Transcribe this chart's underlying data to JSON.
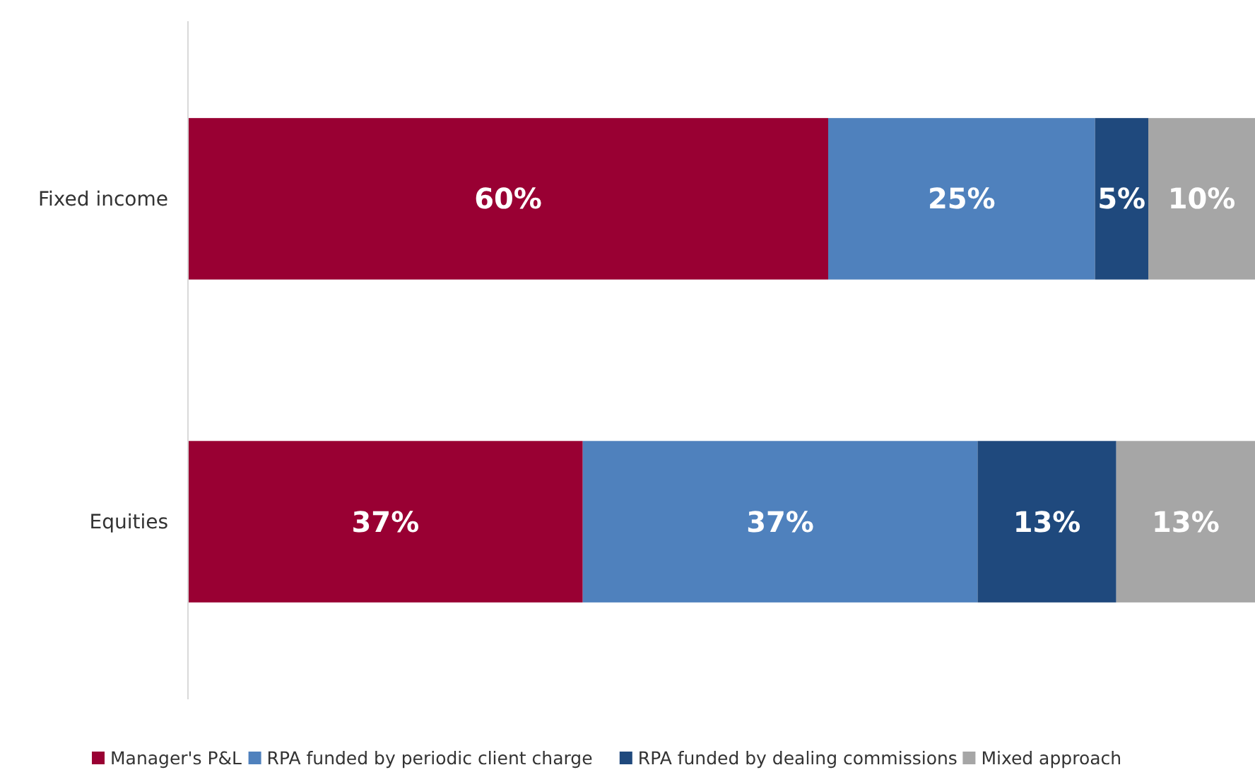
{
  "chart_data": {
    "type": "bar",
    "orientation": "horizontal",
    "stacked": true,
    "categories": [
      "Fixed income",
      "Equities"
    ],
    "series": [
      {
        "name": "Manager's P&L",
        "color": "#990033",
        "values": [
          60,
          37
        ],
        "value_labels": [
          "60%",
          "37%"
        ]
      },
      {
        "name": "RPA funded by periodic client charge",
        "color": "#4f81bd",
        "values": [
          25,
          37
        ],
        "value_labels": [
          "25%",
          "37%"
        ]
      },
      {
        "name": "RPA funded by dealing commissions",
        "color": "#1f497d",
        "values": [
          5,
          13
        ],
        "value_labels": [
          "5%",
          "13%"
        ]
      },
      {
        "name": "Mixed approach",
        "color": "#a6a6a6",
        "values": [
          10,
          13
        ],
        "value_labels": [
          "10%",
          "13%"
        ]
      }
    ],
    "tick_labels": "y",
    "legend": "bottom"
  }
}
